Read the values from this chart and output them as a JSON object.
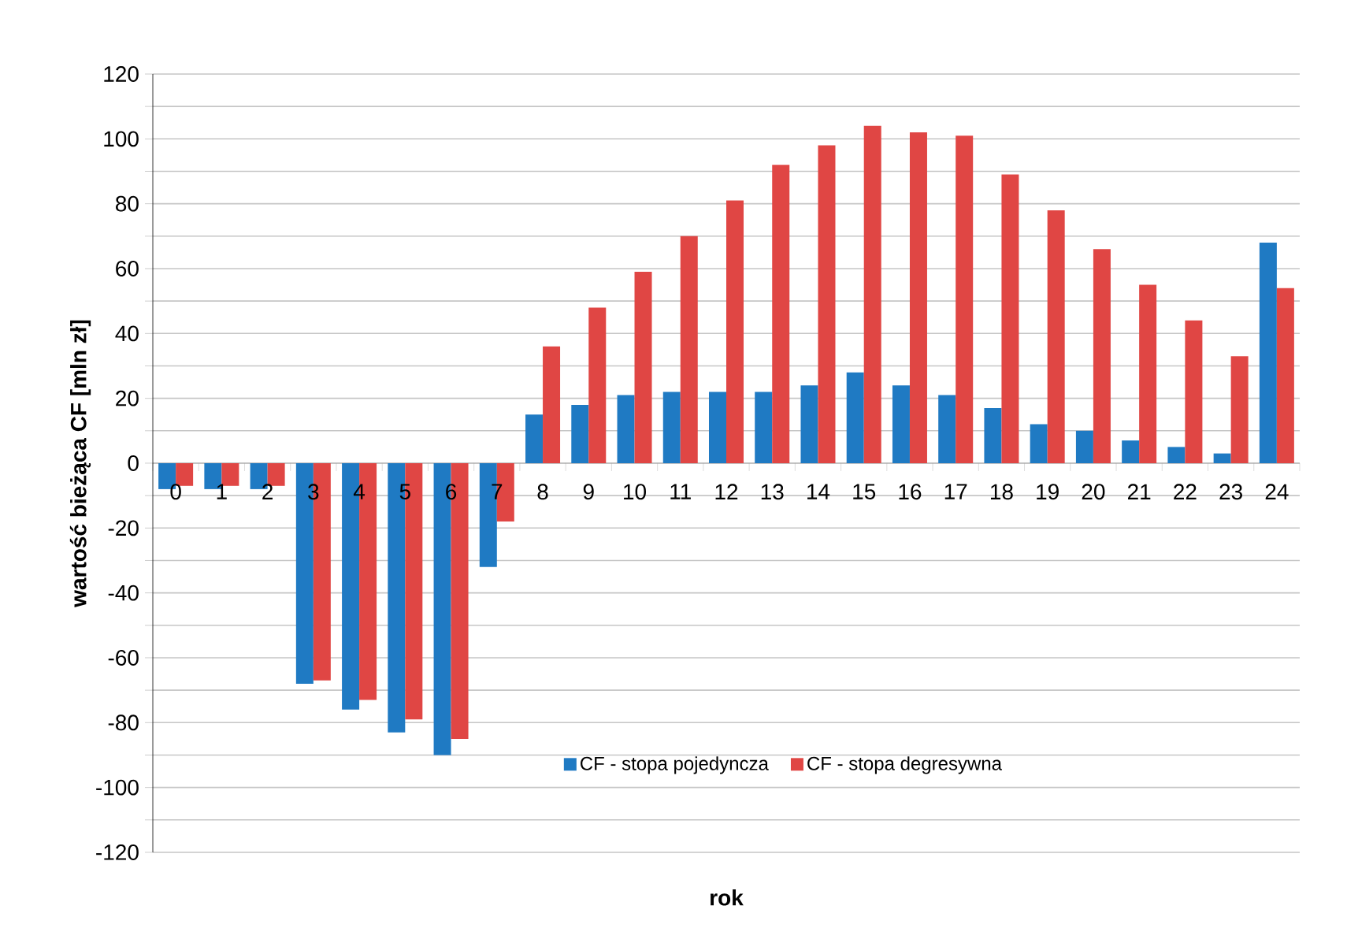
{
  "chart_data": {
    "type": "bar",
    "xlabel": "rok",
    "ylabel": "wartość bieżąca  CF [mln zł]",
    "categories": [
      "0",
      "1",
      "2",
      "3",
      "4",
      "5",
      "6",
      "7",
      "8",
      "9",
      "10",
      "11",
      "12",
      "13",
      "14",
      "15",
      "16",
      "17",
      "18",
      "19",
      "20",
      "21",
      "22",
      "23",
      "24"
    ],
    "series": [
      {
        "name": "CF - stopa pojedyncza",
        "color": "#1f7ac3",
        "values": [
          -8,
          -8,
          -8,
          -68,
          -76,
          -83,
          -90,
          -32,
          15,
          18,
          21,
          22,
          22,
          22,
          24,
          28,
          24,
          21,
          17,
          12,
          10,
          7,
          5,
          3,
          68
        ]
      },
      {
        "name": "CF - stopa degresywna",
        "color": "#e04644",
        "values": [
          -7,
          -7,
          -7,
          -67,
          -73,
          -79,
          -85,
          -18,
          36,
          48,
          59,
          70,
          81,
          92,
          98,
          104,
          102,
          101,
          89,
          78,
          66,
          55,
          44,
          33,
          54
        ]
      }
    ],
    "ylim": [
      -120,
      120
    ],
    "yticks": [
      -120,
      {
        "value": -110,
        "label": null
      },
      -100,
      {
        "value": -90,
        "label": null
      },
      -80,
      {
        "value": -70,
        "label": null
      },
      -60,
      {
        "value": -50,
        "label": null
      },
      -40,
      {
        "value": -30,
        "label": null
      },
      -20,
      {
        "value": -10,
        "label": null
      },
      0,
      {
        "value": 10,
        "label": null
      },
      20,
      {
        "value": 30,
        "label": null
      },
      40,
      {
        "value": 50,
        "label": null
      },
      60,
      {
        "value": 70,
        "label": null
      },
      80,
      {
        "value": 90,
        "label": null
      },
      100,
      {
        "value": 110,
        "label": null
      },
      120
    ],
    "grid": "y",
    "legend": "bottom right"
  }
}
